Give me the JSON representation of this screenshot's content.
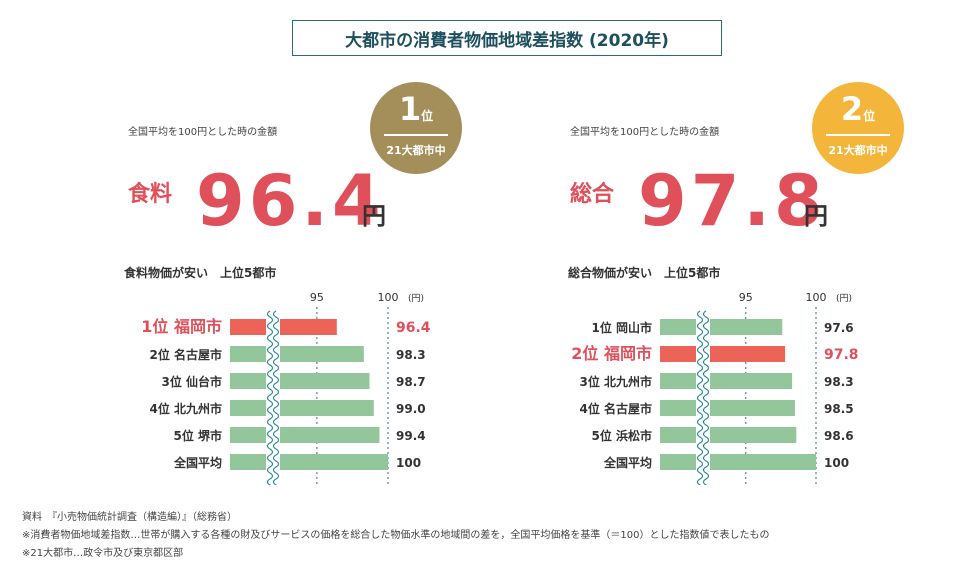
{
  "title": "大都市の消費者物価地域差指数 (2020年)",
  "colors": {
    "accent_red": "#ec6458",
    "bar_green": "#93c79b",
    "wave": "#2a8a9a",
    "dotted": "#2a6b7c",
    "gold": "#a48f5a",
    "yellow": "#f3b63a"
  },
  "panels": [
    {
      "subnote": "全国平均を100円とした時の金額",
      "category": "食料",
      "value": "96.4",
      "unit": "円",
      "badge": {
        "rank": "1",
        "rank_suffix": "位",
        "caption": "21大都市中"
      }
    },
    {
      "subnote": "全国平均を100円とした時の金額",
      "category": "総合",
      "value": "97.8",
      "unit": "円",
      "badge": {
        "rank": "2",
        "rank_suffix": "位",
        "caption": "21大都市中"
      }
    }
  ],
  "chart_data": [
    {
      "type": "bar",
      "title": "食料物価が安い　上位5都市",
      "tick_labels": [
        "95",
        "100"
      ],
      "unit_label": "(円)",
      "xlim": [
        90,
        100
      ],
      "categories": [
        "1位 福岡市",
        "2位 名古屋市",
        "3位 仙台市",
        "4位 北九州市",
        "5位 堺市",
        "全国平均"
      ],
      "values": [
        96.4,
        98.3,
        98.7,
        99.0,
        99.4,
        100
      ],
      "value_labels": [
        "96.4",
        "98.3",
        "98.7",
        "99.0",
        "99.4",
        "100"
      ],
      "highlight_index": 0
    },
    {
      "type": "bar",
      "title": "総合物価が安い　上位5都市",
      "tick_labels": [
        "95",
        "100"
      ],
      "unit_label": "(円)",
      "xlim": [
        90,
        100
      ],
      "categories": [
        "1位 岡山市",
        "2位 福岡市",
        "3位 北九州市",
        "4位 名古屋市",
        "5位 浜松市",
        "全国平均"
      ],
      "values": [
        97.6,
        97.8,
        98.3,
        98.5,
        98.6,
        100
      ],
      "value_labels": [
        "97.6",
        "97.8",
        "98.3",
        "98.5",
        "98.6",
        "100"
      ],
      "highlight_index": 1
    }
  ],
  "footnotes": [
    "資料　『小売物価統計調査（構造編）』（総務省）",
    "※消費者物価地域差指数…世帯が購入する各種の財及びサービスの価格を総合した物価水準の地域間の差を，全国平均価格を基準（＝100）とした指数値で表したもの",
    "※21大都市…政令市及び東京都区部"
  ]
}
